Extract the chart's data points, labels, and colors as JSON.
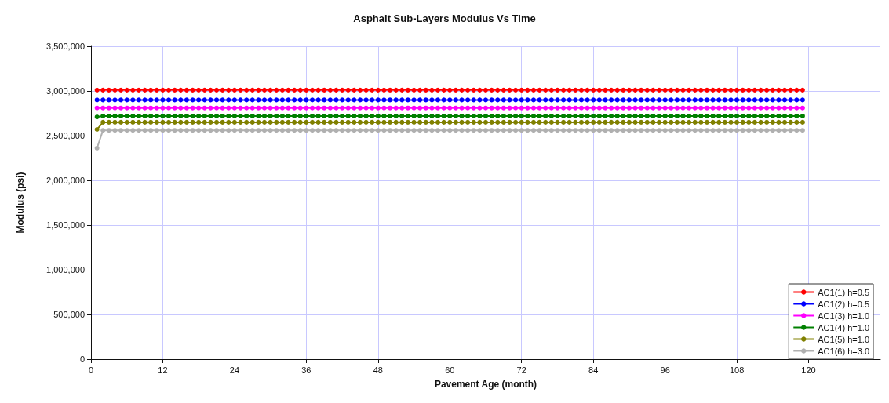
{
  "chart_data": {
    "type": "line",
    "title": "Asphalt Sub-Layers Modulus Vs Time",
    "xlabel": "Pavement Age (month)",
    "ylabel": "Modulus (psi)",
    "x": [
      1,
      2,
      3,
      4,
      5,
      6,
      7,
      8,
      9,
      10,
      11,
      12,
      13,
      14,
      15,
      16,
      17,
      18,
      19,
      20,
      21,
      22,
      23,
      24,
      25,
      26,
      27,
      28,
      29,
      30,
      31,
      32,
      33,
      34,
      35,
      36,
      37,
      38,
      39,
      40,
      41,
      42,
      43,
      44,
      45,
      46,
      47,
      48,
      49,
      50,
      51,
      52,
      53,
      54,
      55,
      56,
      57,
      58,
      59,
      60,
      61,
      62,
      63,
      64,
      65,
      66,
      67,
      68,
      69,
      70,
      71,
      72,
      73,
      74,
      75,
      76,
      77,
      78,
      79,
      80,
      81,
      82,
      83,
      84,
      85,
      86,
      87,
      88,
      89,
      90,
      91,
      92,
      93,
      94,
      95,
      96,
      97,
      98,
      99,
      100,
      101,
      102,
      103,
      104,
      105,
      106,
      107,
      108,
      109,
      110,
      111,
      112,
      113,
      114,
      115,
      116,
      117,
      118,
      119
    ],
    "xlim": [
      0,
      132
    ],
    "xticks": [
      0,
      12,
      24,
      36,
      48,
      60,
      72,
      84,
      96,
      108,
      120
    ],
    "ylim": [
      0,
      3500000
    ],
    "yticks": [
      0,
      {
        "value": 500000,
        "label": "500,000"
      },
      {
        "value": 1000000,
        "label": "1,000,000"
      },
      {
        "value": 1500000,
        "label": "1,500,000"
      },
      {
        "value": 2000000,
        "label": "2,000,000"
      },
      {
        "value": 2500000,
        "label": "2,500,000"
      },
      {
        "value": 3000000,
        "label": "3,000,000"
      },
      {
        "value": 3500000,
        "label": "3,500,000"
      }
    ],
    "grid": true,
    "legend": "bottom right",
    "marker": "circle",
    "line_style": "solid",
    "series": [
      {
        "name": "AC1(1) h=0.5",
        "color": "#ff0000",
        "values": [
          3010000,
          3010000,
          3010000,
          3010000,
          3010000,
          3010000,
          3010000,
          3010000,
          3010000,
          3010000,
          3010000,
          3010000,
          3010000,
          3010000,
          3010000,
          3010000,
          3010000,
          3010000,
          3010000,
          3010000,
          3010000,
          3010000,
          3010000,
          3010000,
          3010000,
          3010000,
          3010000,
          3010000,
          3010000,
          3010000,
          3010000,
          3010000,
          3010000,
          3010000,
          3010000,
          3010000,
          3010000,
          3010000,
          3010000,
          3010000,
          3010000,
          3010000,
          3010000,
          3010000,
          3010000,
          3010000,
          3010000,
          3010000,
          3010000,
          3010000,
          3010000,
          3010000,
          3010000,
          3010000,
          3010000,
          3010000,
          3010000,
          3010000,
          3010000,
          3010000,
          3010000,
          3010000,
          3010000,
          3010000,
          3010000,
          3010000,
          3010000,
          3010000,
          3010000,
          3010000,
          3010000,
          3010000,
          3010000,
          3010000,
          3010000,
          3010000,
          3010000,
          3010000,
          3010000,
          3010000,
          3010000,
          3010000,
          3010000,
          3010000,
          3010000,
          3010000,
          3010000,
          3010000,
          3010000,
          3010000,
          3010000,
          3010000,
          3010000,
          3010000,
          3010000,
          3010000,
          3010000,
          3010000,
          3010000,
          3010000,
          3010000,
          3010000,
          3010000,
          3010000,
          3010000,
          3010000,
          3010000,
          3010000,
          3010000,
          3010000,
          3010000,
          3010000,
          3010000,
          3010000,
          3010000,
          3010000,
          3010000,
          3010000,
          3010000
        ]
      },
      {
        "name": "AC1(2) h=0.5",
        "color": "#0000ff",
        "values": [
          2900000,
          2900000,
          2900000,
          2900000,
          2900000,
          2900000,
          2900000,
          2900000,
          2900000,
          2900000,
          2900000,
          2900000,
          2900000,
          2900000,
          2900000,
          2900000,
          2900000,
          2900000,
          2900000,
          2900000,
          2900000,
          2900000,
          2900000,
          2900000,
          2900000,
          2900000,
          2900000,
          2900000,
          2900000,
          2900000,
          2900000,
          2900000,
          2900000,
          2900000,
          2900000,
          2900000,
          2900000,
          2900000,
          2900000,
          2900000,
          2900000,
          2900000,
          2900000,
          2900000,
          2900000,
          2900000,
          2900000,
          2900000,
          2900000,
          2900000,
          2900000,
          2900000,
          2900000,
          2900000,
          2900000,
          2900000,
          2900000,
          2900000,
          2900000,
          2900000,
          2900000,
          2900000,
          2900000,
          2900000,
          2900000,
          2900000,
          2900000,
          2900000,
          2900000,
          2900000,
          2900000,
          2900000,
          2900000,
          2900000,
          2900000,
          2900000,
          2900000,
          2900000,
          2900000,
          2900000,
          2900000,
          2900000,
          2900000,
          2900000,
          2900000,
          2900000,
          2900000,
          2900000,
          2900000,
          2900000,
          2900000,
          2900000,
          2900000,
          2900000,
          2900000,
          2900000,
          2900000,
          2900000,
          2900000,
          2900000,
          2900000,
          2900000,
          2900000,
          2900000,
          2900000,
          2900000,
          2900000,
          2900000,
          2900000,
          2900000,
          2900000,
          2900000,
          2900000,
          2900000,
          2900000,
          2900000,
          2900000,
          2900000,
          2900000
        ]
      },
      {
        "name": "AC1(3) h=1.0",
        "color": "#ff00ff",
        "values": [
          2810000,
          2810000,
          2810000,
          2810000,
          2810000,
          2810000,
          2810000,
          2810000,
          2810000,
          2810000,
          2810000,
          2810000,
          2810000,
          2810000,
          2810000,
          2810000,
          2810000,
          2810000,
          2810000,
          2810000,
          2810000,
          2810000,
          2810000,
          2810000,
          2810000,
          2810000,
          2810000,
          2810000,
          2810000,
          2810000,
          2810000,
          2810000,
          2810000,
          2810000,
          2810000,
          2810000,
          2810000,
          2810000,
          2810000,
          2810000,
          2810000,
          2810000,
          2810000,
          2810000,
          2810000,
          2810000,
          2810000,
          2810000,
          2810000,
          2810000,
          2810000,
          2810000,
          2810000,
          2810000,
          2810000,
          2810000,
          2810000,
          2810000,
          2810000,
          2810000,
          2810000,
          2810000,
          2810000,
          2810000,
          2810000,
          2810000,
          2810000,
          2810000,
          2810000,
          2810000,
          2810000,
          2810000,
          2810000,
          2810000,
          2810000,
          2810000,
          2810000,
          2810000,
          2810000,
          2810000,
          2810000,
          2810000,
          2810000,
          2810000,
          2810000,
          2810000,
          2810000,
          2810000,
          2810000,
          2810000,
          2810000,
          2810000,
          2810000,
          2810000,
          2810000,
          2810000,
          2810000,
          2810000,
          2810000,
          2810000,
          2810000,
          2810000,
          2810000,
          2810000,
          2810000,
          2810000,
          2810000,
          2810000,
          2810000,
          2810000,
          2810000,
          2810000,
          2810000,
          2810000,
          2810000,
          2810000,
          2810000,
          2810000,
          2810000
        ]
      },
      {
        "name": "AC1(4) h=1.0",
        "color": "#008000",
        "values": [
          2710000,
          2720000,
          2720000,
          2720000,
          2720000,
          2720000,
          2720000,
          2720000,
          2720000,
          2720000,
          2720000,
          2720000,
          2720000,
          2720000,
          2720000,
          2720000,
          2720000,
          2720000,
          2720000,
          2720000,
          2720000,
          2720000,
          2720000,
          2720000,
          2720000,
          2720000,
          2720000,
          2720000,
          2720000,
          2720000,
          2720000,
          2720000,
          2720000,
          2720000,
          2720000,
          2720000,
          2720000,
          2720000,
          2720000,
          2720000,
          2720000,
          2720000,
          2720000,
          2720000,
          2720000,
          2720000,
          2720000,
          2720000,
          2720000,
          2720000,
          2720000,
          2720000,
          2720000,
          2720000,
          2720000,
          2720000,
          2720000,
          2720000,
          2720000,
          2720000,
          2720000,
          2720000,
          2720000,
          2720000,
          2720000,
          2720000,
          2720000,
          2720000,
          2720000,
          2720000,
          2720000,
          2720000,
          2720000,
          2720000,
          2720000,
          2720000,
          2720000,
          2720000,
          2720000,
          2720000,
          2720000,
          2720000,
          2720000,
          2720000,
          2720000,
          2720000,
          2720000,
          2720000,
          2720000,
          2720000,
          2720000,
          2720000,
          2720000,
          2720000,
          2720000,
          2720000,
          2720000,
          2720000,
          2720000,
          2720000,
          2720000,
          2720000,
          2720000,
          2720000,
          2720000,
          2720000,
          2720000,
          2720000,
          2720000,
          2720000,
          2720000,
          2720000,
          2720000,
          2720000,
          2720000,
          2720000,
          2720000,
          2720000,
          2720000
        ]
      },
      {
        "name": "AC1(5) h=1.0",
        "color": "#808000",
        "values": [
          2570000,
          2650000,
          2650000,
          2650000,
          2650000,
          2650000,
          2650000,
          2650000,
          2650000,
          2650000,
          2650000,
          2650000,
          2650000,
          2650000,
          2650000,
          2650000,
          2650000,
          2650000,
          2650000,
          2650000,
          2650000,
          2650000,
          2650000,
          2650000,
          2650000,
          2650000,
          2650000,
          2650000,
          2650000,
          2650000,
          2650000,
          2650000,
          2650000,
          2650000,
          2650000,
          2650000,
          2650000,
          2650000,
          2650000,
          2650000,
          2650000,
          2650000,
          2650000,
          2650000,
          2650000,
          2650000,
          2650000,
          2650000,
          2650000,
          2650000,
          2650000,
          2650000,
          2650000,
          2650000,
          2650000,
          2650000,
          2650000,
          2650000,
          2650000,
          2650000,
          2650000,
          2650000,
          2650000,
          2650000,
          2650000,
          2650000,
          2650000,
          2650000,
          2650000,
          2650000,
          2650000,
          2650000,
          2650000,
          2650000,
          2650000,
          2650000,
          2650000,
          2650000,
          2650000,
          2650000,
          2650000,
          2650000,
          2650000,
          2650000,
          2650000,
          2650000,
          2650000,
          2650000,
          2650000,
          2650000,
          2650000,
          2650000,
          2650000,
          2650000,
          2650000,
          2650000,
          2650000,
          2650000,
          2650000,
          2650000,
          2650000,
          2650000,
          2650000,
          2650000,
          2650000,
          2650000,
          2650000,
          2650000,
          2650000,
          2650000,
          2650000,
          2650000,
          2650000,
          2650000,
          2650000,
          2650000,
          2650000,
          2650000,
          2650000
        ]
      },
      {
        "name": "AC1(6) h=3.0",
        "color": "#b0b0b0",
        "values": [
          2360000,
          2560000,
          2560000,
          2560000,
          2560000,
          2560000,
          2560000,
          2560000,
          2560000,
          2560000,
          2560000,
          2560000,
          2560000,
          2560000,
          2560000,
          2560000,
          2560000,
          2560000,
          2560000,
          2560000,
          2560000,
          2560000,
          2560000,
          2560000,
          2560000,
          2560000,
          2560000,
          2560000,
          2560000,
          2560000,
          2560000,
          2560000,
          2560000,
          2560000,
          2560000,
          2560000,
          2560000,
          2560000,
          2560000,
          2560000,
          2560000,
          2560000,
          2560000,
          2560000,
          2560000,
          2560000,
          2560000,
          2560000,
          2560000,
          2560000,
          2560000,
          2560000,
          2560000,
          2560000,
          2560000,
          2560000,
          2560000,
          2560000,
          2560000,
          2560000,
          2560000,
          2560000,
          2560000,
          2560000,
          2560000,
          2560000,
          2560000,
          2560000,
          2560000,
          2560000,
          2560000,
          2560000,
          2560000,
          2560000,
          2560000,
          2560000,
          2560000,
          2560000,
          2560000,
          2560000,
          2560000,
          2560000,
          2560000,
          2560000,
          2560000,
          2560000,
          2560000,
          2560000,
          2560000,
          2560000,
          2560000,
          2560000,
          2560000,
          2560000,
          2560000,
          2560000,
          2560000,
          2560000,
          2560000,
          2560000,
          2560000,
          2560000,
          2560000,
          2560000,
          2560000,
          2560000,
          2560000,
          2560000,
          2560000,
          2560000,
          2560000,
          2560000,
          2560000,
          2560000,
          2560000,
          2560000,
          2560000,
          2560000,
          2560000
        ]
      }
    ]
  }
}
